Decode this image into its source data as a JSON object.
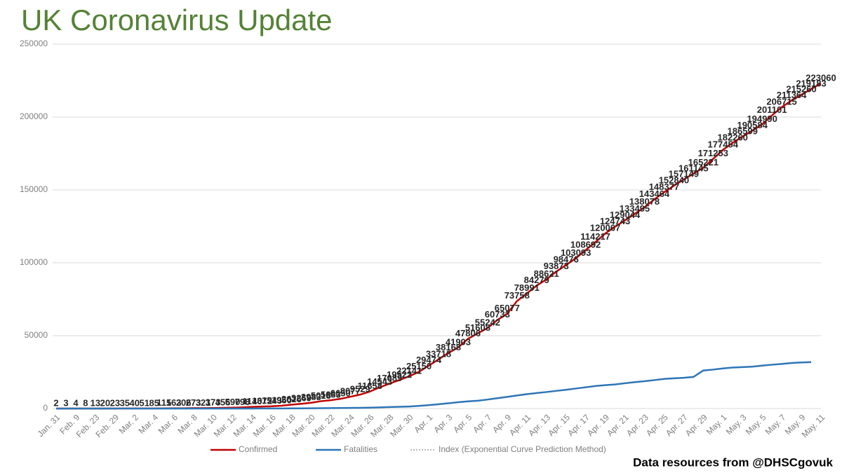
{
  "chart_data": {
    "type": "line",
    "title": "UK Coronavirus Update",
    "subtitle": "Data resources from @DHSCgovuk",
    "categories": [
      "Jan. 31",
      null,
      "Feb. 9",
      null,
      "Feb. 23",
      null,
      "Feb. 29",
      null,
      "Mar. 2",
      null,
      "Mar. 4",
      null,
      "Mar. 6",
      null,
      "Mar. 8",
      null,
      "Mar. 10",
      null,
      "Mar. 12",
      null,
      "Mar. 14",
      null,
      "Mar. 16",
      null,
      "Mar. 18",
      null,
      "Mar. 20",
      null,
      "Mar. 22",
      null,
      "Mar. 24",
      null,
      "Mar. 26",
      null,
      "Mar. 28",
      null,
      "Mar. 30",
      null,
      "Apr. 1",
      null,
      "Apr. 3",
      null,
      "Apr. 5",
      null,
      "Apr. 7",
      null,
      "Apr. 9",
      null,
      "Apr. 11",
      null,
      "Apr. 13",
      null,
      "Apr. 15",
      null,
      "Apr. 17",
      null,
      "Apr. 19",
      null,
      "Apr. 21",
      null,
      "Apr. 23",
      null,
      "Apr. 25",
      null,
      "Apr. 27",
      null,
      "Apr. 29",
      null,
      "May. 1",
      null,
      "May. 3",
      null,
      "May. 5",
      null,
      "May. 7",
      null,
      "May. 9",
      null,
      "May. 11"
    ],
    "series": [
      {
        "name": "Confirmed",
        "color": "#c00000",
        "data_labels": true,
        "values": [
          2,
          3,
          4,
          8,
          13,
          20,
          23,
          35,
          40,
          51,
          85,
          115,
          163,
          206,
          273,
          321,
          373,
          456,
          590,
          798,
          1140,
          1372,
          1543,
          1950,
          2626,
          3269,
          3983,
          5018,
          5683,
          6650,
          8077,
          9529,
          11658,
          14543,
          17089,
          19522,
          22141,
          25150,
          29474,
          33718,
          38168,
          41903,
          47806,
          51608,
          55242,
          60733,
          65077,
          73758,
          78991,
          84279,
          88621,
          93873,
          98476,
          103093,
          108692,
          114217,
          120067,
          124743,
          129044,
          133495,
          138078,
          143464,
          148377,
          152840,
          157149,
          161145,
          165221,
          171253,
          177454,
          182260,
          186599,
          190584,
          194990,
          201101,
          206715,
          211364,
          215260,
          219183,
          223060
        ]
      },
      {
        "name": "Fatalities",
        "color": "#2e75b6",
        "values": [
          0,
          0,
          0,
          0,
          0,
          0,
          0,
          0,
          0,
          0,
          0,
          1,
          2,
          2,
          3,
          4,
          6,
          8,
          10,
          11,
          21,
          35,
          55,
          71,
          104,
          144,
          177,
          233,
          281,
          335,
          422,
          465,
          578,
          759,
          1019,
          1228,
          1408,
          1789,
          2352,
          2921,
          3605,
          4313,
          4934,
          5373,
          6159,
          7097,
          7978,
          8958,
          9875,
          10612,
          11329,
          12107,
          12868,
          13729,
          14576,
          15464,
          16060,
          16509,
          17337,
          18100,
          18738,
          19506,
          20319,
          20732,
          21092,
          21678,
          26097,
          26711,
          27510,
          28131,
          28446,
          28734,
          29427,
          30076,
          30615,
          31241,
          31587,
          31855,
          null
        ]
      },
      {
        "name": "Index (Exponential Curve Prediction Method)",
        "color": "#a6a6a6",
        "dashed": true
      }
    ],
    "ylim": [
      0,
      250000
    ],
    "yticks": [
      0,
      50000,
      100000,
      150000,
      200000,
      250000
    ],
    "grid": true,
    "legend": "bottom"
  }
}
